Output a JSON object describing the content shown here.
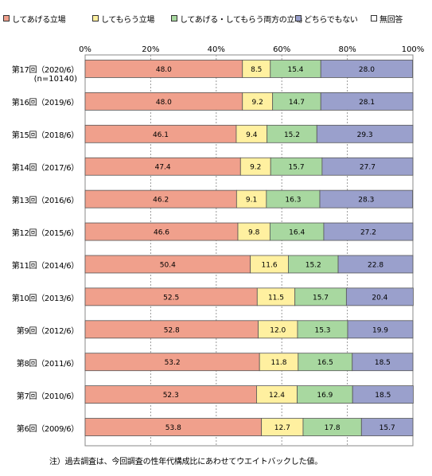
{
  "chart_data": {
    "type": "bar",
    "stacked": true,
    "orientation": "horizontal",
    "percent": true,
    "xlim": [
      0,
      100
    ],
    "ticks": [
      "0%",
      "20%",
      "40%",
      "60%",
      "80%",
      "100%"
    ],
    "legend_position": "top",
    "grid": true,
    "categories": [
      "第17回（2020/6）",
      "第16回（2019/6）",
      "第15回（2018/6）",
      "第14回（2017/6）",
      "第13回（2016/6）",
      "第12回（2015/6）",
      "第11回（2014/6）",
      "第10回（2013/6）",
      "第9回（2012/6）",
      "第8回（2011/6）",
      "第7回（2010/6）",
      "第6回（2009/6）"
    ],
    "category_note": "(n=10140)",
    "series": [
      {
        "name": "してあげる立場",
        "color": "#f0a08c",
        "values": [
          48.0,
          48.0,
          46.1,
          47.4,
          46.2,
          46.6,
          50.4,
          52.5,
          52.8,
          53.2,
          52.3,
          53.8
        ]
      },
      {
        "name": "してもらう立場",
        "color": "#fff0a0",
        "values": [
          8.5,
          9.2,
          9.4,
          9.2,
          9.1,
          9.8,
          11.6,
          11.5,
          12.0,
          11.8,
          12.4,
          12.7
        ]
      },
      {
        "name": "してあげる・してもらう両方の立場",
        "color": "#a8d8a0",
        "values": [
          15.4,
          14.7,
          15.2,
          15.7,
          16.3,
          16.4,
          15.2,
          15.7,
          15.3,
          16.5,
          16.9,
          17.8
        ]
      },
      {
        "name": "どちらでもない",
        "color": "#9aa0cc",
        "values": [
          28.0,
          28.1,
          29.3,
          27.7,
          28.3,
          27.2,
          22.8,
          20.4,
          19.9,
          18.5,
          18.5,
          15.7
        ]
      },
      {
        "name": "無回答",
        "color": "#ffffff",
        "values": [
          0,
          0,
          0,
          0,
          0,
          0,
          0,
          0,
          0,
          0,
          0,
          0
        ]
      }
    ],
    "value_labels": [
      [
        "48.0",
        "8.5",
        "15.4",
        "28.0"
      ],
      [
        "48.0",
        "9.2",
        "14.7",
        "28.1"
      ],
      [
        "46.1",
        "9.4",
        "15.2",
        "29.3"
      ],
      [
        "47.4",
        "9.2",
        "15.7",
        "27.7"
      ],
      [
        "46.2",
        "9.1",
        "16.3",
        "28.3"
      ],
      [
        "46.6",
        "9.8",
        "16.4",
        "27.2"
      ],
      [
        "50.4",
        "11.6",
        "15.2",
        "22.8"
      ],
      [
        "52.5",
        "11.5",
        "15.7",
        "20.4"
      ],
      [
        "52.8",
        "12.0",
        "15.3",
        "19.9"
      ],
      [
        "53.2",
        "11.8",
        "16.5",
        "18.5"
      ],
      [
        "52.3",
        "12.4",
        "16.9",
        "18.5"
      ],
      [
        "53.8",
        "12.7",
        "17.8",
        "15.7"
      ]
    ]
  },
  "note": "注）過去調査は、今回調査の性年代構成比にあわせてウエイトバックした値。"
}
